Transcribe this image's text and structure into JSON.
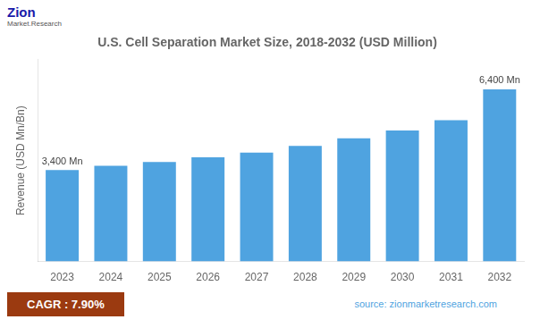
{
  "chart_data": {
    "type": "bar",
    "title": "U.S. Cell Separation Market Size, 2018-2032 (USD Million)",
    "categories": [
      "2023",
      "2024",
      "2025",
      "2026",
      "2027",
      "2028",
      "2029",
      "2030",
      "2031",
      "2032"
    ],
    "values": [
      3400,
      3560,
      3700,
      3870,
      4050,
      4300,
      4580,
      4870,
      5250,
      6400
    ],
    "color": "#4fa3e0",
    "ylabel": "Revenue (USD Mn/Bn)",
    "ylim": [
      0,
      7500
    ],
    "tick_labels": "x",
    "grid": false,
    "annotations": [
      {
        "category": "2023",
        "value": 3400,
        "text": "3,400 Mn"
      },
      {
        "category": "2032",
        "value": 6400,
        "text": "6,400 Mn"
      }
    ],
    "logo_text": "Zion",
    "logo_subtext": "Market.Research",
    "cagr": "CAGR : 7.90%",
    "cagr_color": "#9b3a10",
    "cagr_text_color": "#ffffff",
    "source": "source: zionmarketresearch.com",
    "source_color": "#4fa3e0"
  }
}
